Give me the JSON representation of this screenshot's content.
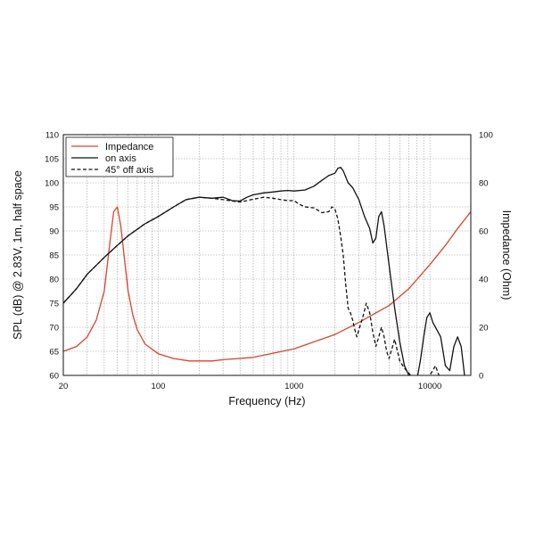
{
  "chart_data": {
    "type": "line",
    "xlabel": "Frequency (Hz)",
    "ylabel": "SPL (dB) @ 2.83V, 1m, half space",
    "y2label": "Impedance (Ohm)",
    "x_scale": "log",
    "xlim": [
      20,
      20000
    ],
    "ylim": [
      60,
      110
    ],
    "y2lim": [
      0,
      100
    ],
    "grid": true,
    "legend_position": "top-left",
    "x_ticks": [
      {
        "value": 20,
        "label": "20"
      },
      {
        "value": 100,
        "label": "100"
      },
      {
        "value": 1000,
        "label": "1000"
      },
      {
        "value": 10000,
        "label": "10000"
      }
    ],
    "y_ticks": [
      "60",
      "65",
      "70",
      "75",
      "80",
      "85",
      "90",
      "95",
      "100",
      "105",
      "110"
    ],
    "y2_ticks": [
      "0",
      "20",
      "40",
      "60",
      "80",
      "100"
    ],
    "series": [
      {
        "name": "Impedance",
        "axis": "right",
        "color": "#d9442e",
        "dash": "solid",
        "x": [
          20,
          25,
          30,
          35,
          40,
          44,
          47,
          50,
          53,
          56,
          60,
          65,
          70,
          80,
          100,
          130,
          170,
          250,
          300,
          500,
          1000,
          2000,
          3000,
          5000,
          7000,
          10000,
          13000,
          16000,
          20000
        ],
        "y": [
          10,
          12,
          16,
          23,
          35,
          55,
          68,
          70,
          62,
          50,
          35,
          25,
          19,
          13,
          9,
          7,
          6,
          6,
          6.5,
          7.5,
          11,
          17,
          22,
          29,
          36,
          46,
          54,
          61,
          68
        ]
      },
      {
        "name": "on axis",
        "axis": "left",
        "color": "#111111",
        "dash": "solid",
        "x": [
          20,
          25,
          30,
          40,
          50,
          60,
          80,
          100,
          130,
          160,
          200,
          250,
          300,
          350,
          400,
          450,
          500,
          600,
          700,
          800,
          900,
          1000,
          1200,
          1400,
          1600,
          1800,
          2000,
          2100,
          2200,
          2300,
          2500,
          2700,
          3000,
          3300,
          3600,
          3800,
          4000,
          4200,
          4400,
          4600,
          5000,
          5500,
          6000,
          6500,
          7000,
          7500,
          8000,
          8500,
          9000,
          9500,
          10000,
          10500,
          11000,
          12000,
          13000,
          14000,
          15000,
          16000,
          17000,
          18000
        ],
        "y": [
          75,
          78,
          81,
          84.5,
          87,
          89,
          91.5,
          93,
          95,
          96.5,
          97,
          96.8,
          97,
          96.3,
          96.2,
          97,
          97.5,
          97.9,
          98.1,
          98.3,
          98.4,
          98.3,
          98.5,
          99.3,
          100.5,
          101.5,
          102,
          103,
          103.2,
          102.5,
          100,
          99,
          96.5,
          93,
          90.5,
          87.5,
          88.5,
          93,
          94,
          91,
          83,
          74,
          67,
          62,
          60,
          58,
          59,
          63,
          68,
          72,
          73,
          71,
          70,
          68,
          62,
          61,
          66,
          68,
          66,
          60
        ]
      },
      {
        "name": "45° off axis",
        "axis": "left",
        "color": "#111111",
        "dash": "dashed",
        "x": [
          20,
          25,
          30,
          40,
          50,
          60,
          80,
          100,
          130,
          160,
          200,
          250,
          300,
          350,
          400,
          450,
          500,
          600,
          700,
          800,
          900,
          1000,
          1100,
          1200,
          1400,
          1600,
          1800,
          1900,
          2000,
          2100,
          2200,
          2300,
          2400,
          2500,
          2600,
          2700,
          2800,
          2900,
          3000,
          3200,
          3400,
          3600,
          3800,
          4000,
          4200,
          4400,
          4600,
          4800,
          5000,
          5500,
          6000,
          6500,
          7000,
          8000,
          9000,
          10000,
          11000,
          12000
        ],
        "y": [
          75,
          78,
          81,
          84.5,
          87,
          89,
          91.5,
          93,
          95,
          96.5,
          97,
          96.8,
          96.5,
          96.2,
          96,
          96.3,
          96.6,
          97,
          96.8,
          96.5,
          96.3,
          96.3,
          95.5,
          95,
          94.8,
          93.8,
          94,
          95,
          94.5,
          92.5,
          89,
          85,
          79,
          74,
          73,
          71.5,
          69.5,
          68,
          69.5,
          72,
          75,
          73,
          69,
          66,
          68,
          70,
          68,
          65,
          63.5,
          67.5,
          63,
          61.5,
          60.5,
          58,
          57,
          60,
          62,
          59
        ]
      }
    ]
  }
}
